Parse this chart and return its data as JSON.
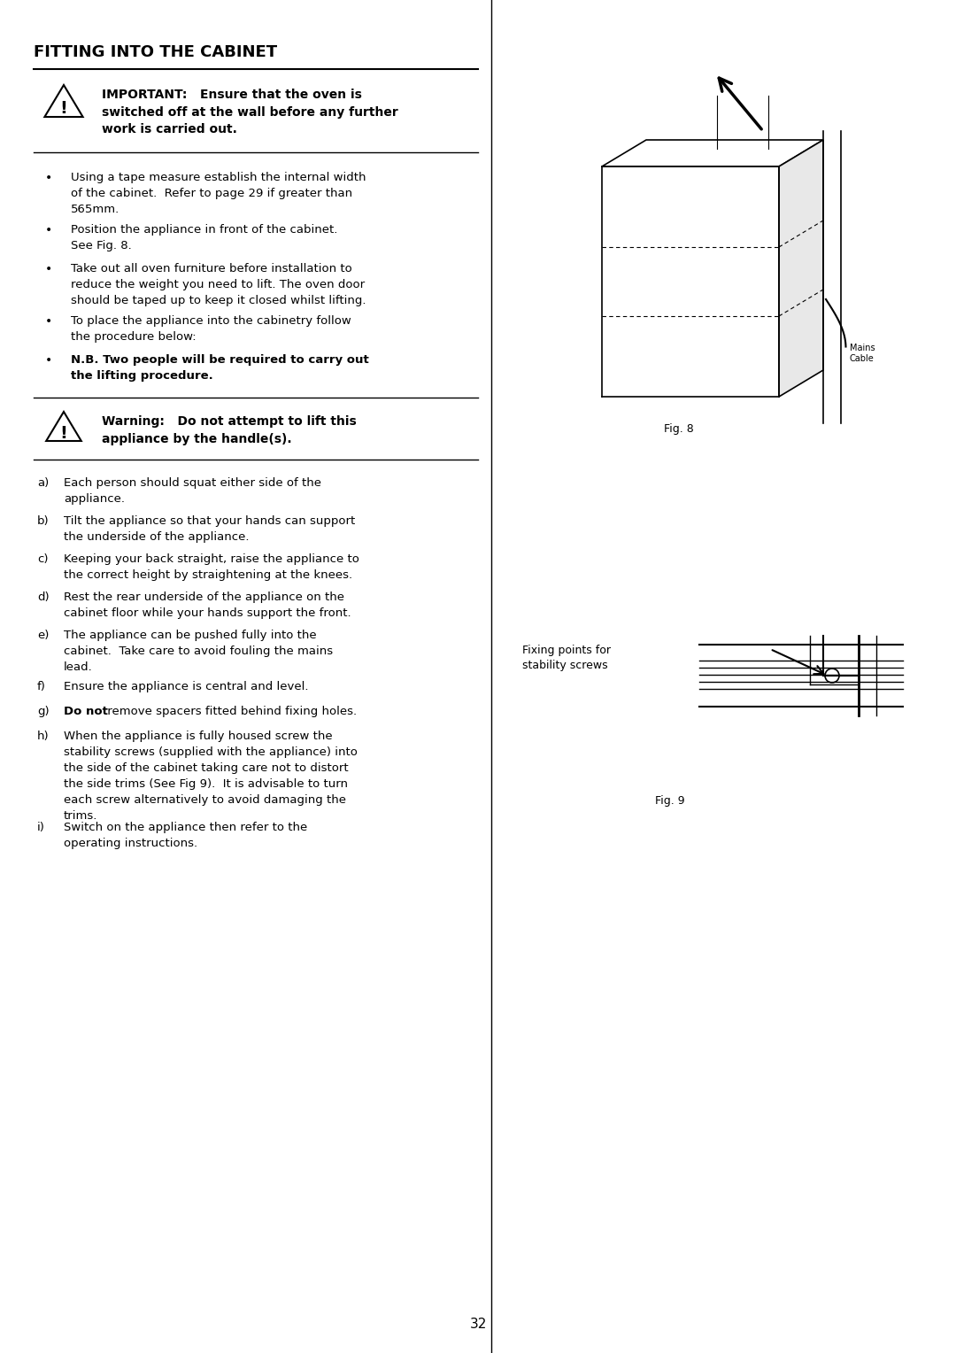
{
  "title": "FITTING INTO THE CABINET",
  "bg_color": "#ffffff",
  "text_color": "#000000",
  "page_number": "32",
  "important_text": "IMPORTANT:   Ensure that the oven is\nswitched off at the wall before any further\nwork is carried out.",
  "warning_text": "Warning:   Do not attempt to lift this\nappliance by the handle(s).",
  "bullet_items": [
    "Using a tape measure establish the internal width\nof the cabinet.  Refer to page 29 if greater than\n565mm.",
    "Position the appliance in front of the cabinet.\nSee Fig. 8.",
    "Take out all oven furniture before installation to\nreduce the weight you need to lift. The oven door\nshould be taped up to keep it closed whilst lifting.",
    "To place the appliance into the cabinetry follow\nthe procedure below:",
    "N.B. Two people will be required to carry out\nthe lifting procedure."
  ],
  "bullet_bold": [
    false,
    false,
    false,
    false,
    true
  ],
  "lettered_items": [
    [
      "a)",
      "Each person should squat either side of the\nappliance."
    ],
    [
      "b)",
      "Tilt the appliance so that your hands can support\nthe underside of the appliance."
    ],
    [
      "c)",
      "Keeping your back straight, raise the appliance to\nthe correct height by straightening at the knees."
    ],
    [
      "d)",
      "Rest the rear underside of the appliance on the\ncabinet floor while your hands support the front."
    ],
    [
      "e)",
      "The appliance can be pushed fully into the\ncabinet.  Take care to avoid fouling the mains\nlead."
    ],
    [
      "f)",
      "Ensure the appliance is central and level."
    ],
    [
      "g)",
      "Do not remove spacers fitted behind fixing holes."
    ],
    [
      "h)",
      "When the appliance is fully housed screw the\nstability screws (supplied with the appliance) into\nthe side of the cabinet taking care not to distort\nthe side trims (See Fig 9).  It is advisable to turn\neach screw alternatively to avoid damaging the\ntrims."
    ],
    [
      "i)",
      "Switch on the appliance then refer to the\noperating instructions."
    ]
  ],
  "g_bold_prefix": "Do not",
  "fig8_label": "Fig. 8",
  "fig9_label": "Fig. 9",
  "fixing_label": "Fixing points for\nstability screws"
}
